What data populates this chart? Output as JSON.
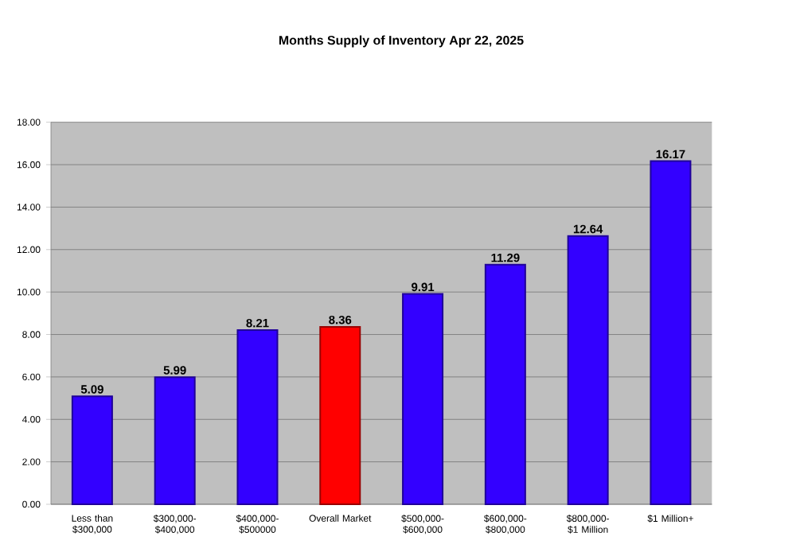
{
  "chart_data": {
    "type": "bar",
    "title": "Months Supply of Inventory Apr 22, 2025",
    "categories": [
      "Less than $300,000",
      "$300,000-$400,000",
      "$400,000-$500000",
      "Overall Market",
      "$500,000-$600,000",
      "$600,000-$800,000",
      "$800,000-$1 Million",
      "$1 Million+"
    ],
    "values": [
      5.09,
      5.99,
      8.21,
      8.36,
      9.91,
      11.29,
      12.64,
      16.17
    ],
    "colors": [
      "#3300ff",
      "#3300ff",
      "#3300ff",
      "#ff0000",
      "#3300ff",
      "#3300ff",
      "#3300ff",
      "#3300ff"
    ],
    "ylim": [
      0,
      18
    ],
    "yticks": [
      {
        "value": 0,
        "label": "0.00"
      },
      {
        "value": 2,
        "label": "2.00"
      },
      {
        "value": 4,
        "label": "4.00"
      },
      {
        "value": 6,
        "label": "6.00"
      },
      {
        "value": 8,
        "label": "8.00"
      },
      {
        "value": 10,
        "label": "10.00"
      },
      {
        "value": 12,
        "label": "12.00"
      },
      {
        "value": 14,
        "label": "14.00"
      },
      {
        "value": 16,
        "label": "16.00"
      },
      {
        "value": 18,
        "label": "18.00"
      }
    ],
    "grid": "y",
    "data_labels": true
  }
}
